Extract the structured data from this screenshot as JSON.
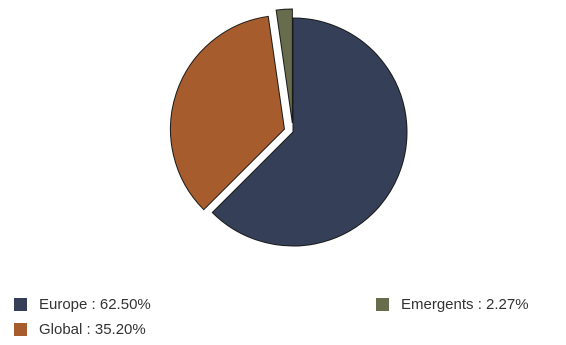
{
  "chart_data": {
    "type": "pie",
    "slices": [
      {
        "label": "Europe",
        "value": 62.5,
        "display": "Europe : 62.50%",
        "color": "#353f57"
      },
      {
        "label": "Global",
        "value": 35.2,
        "display": "Global : 35.20%",
        "color": "#a75c2d"
      },
      {
        "label": "Emergents",
        "value": 2.27,
        "display": "Emergents : 2.27%",
        "color": "#676c4d"
      }
    ],
    "exploded": true,
    "start_angle": "12 o'clock",
    "direction": "clockwise",
    "legend_position": "bottom"
  }
}
